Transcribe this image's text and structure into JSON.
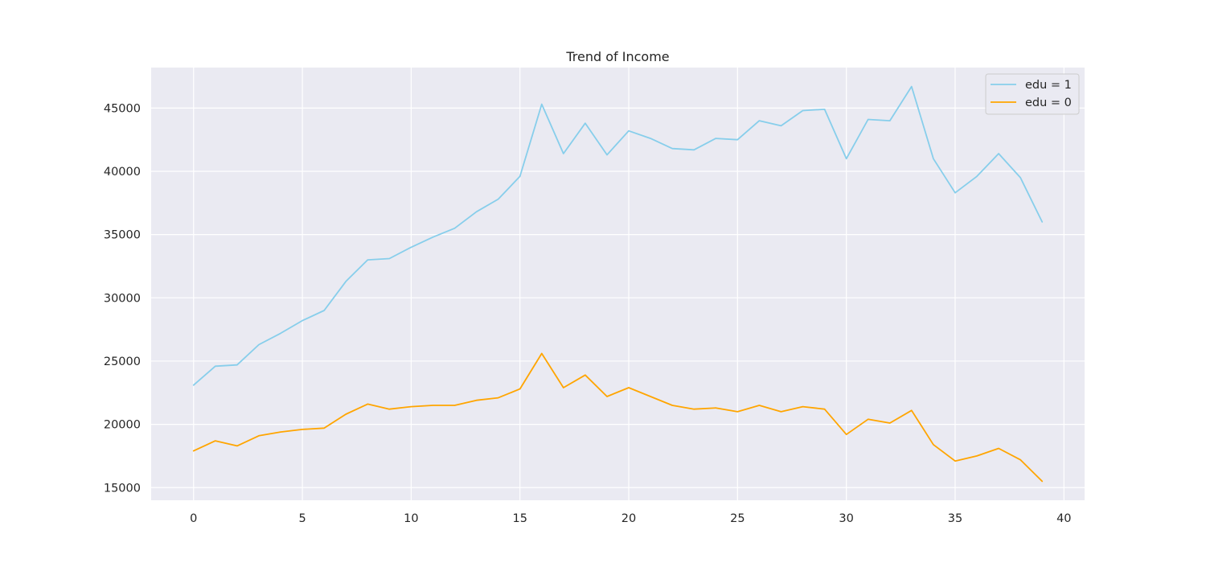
{
  "chart_data": {
    "type": "line",
    "title": "Trend of Income",
    "xlabel": "",
    "ylabel": "",
    "xlim": [
      -1.95,
      40.95
    ],
    "ylim": [
      14000,
      48200
    ],
    "xticks": [
      0,
      5,
      10,
      15,
      20,
      25,
      30,
      35,
      40
    ],
    "yticks": [
      15000,
      20000,
      25000,
      30000,
      35000,
      40000,
      45000
    ],
    "grid": true,
    "legend_position": "top-right",
    "x": [
      0,
      1,
      2,
      3,
      4,
      5,
      6,
      7,
      8,
      9,
      10,
      11,
      12,
      13,
      14,
      15,
      16,
      17,
      18,
      19,
      20,
      21,
      22,
      23,
      24,
      25,
      26,
      27,
      28,
      29,
      30,
      31,
      32,
      33,
      34,
      35,
      36,
      37,
      38,
      39
    ],
    "series": [
      {
        "name": "edu = 1",
        "color": "#87ceeb",
        "values": [
          23100,
          24600,
          24700,
          26300,
          27200,
          28200,
          29000,
          31300,
          33000,
          33100,
          34000,
          34800,
          35500,
          36800,
          37800,
          39600,
          45300,
          41400,
          43800,
          41300,
          43200,
          42600,
          41800,
          41700,
          42600,
          42500,
          44000,
          43600,
          44800,
          44900,
          41000,
          44100,
          44000,
          46700,
          41000,
          38300,
          39600,
          41400,
          39500,
          36000
        ]
      },
      {
        "name": "edu = 0",
        "color": "#ffa500",
        "values": [
          17900,
          18700,
          18300,
          19100,
          19400,
          19600,
          19700,
          20800,
          21600,
          21200,
          21400,
          21500,
          21500,
          21900,
          22100,
          22800,
          25600,
          22900,
          23900,
          22200,
          22900,
          22200,
          21500,
          21200,
          21300,
          21000,
          21500,
          21000,
          21400,
          21200,
          19200,
          20400,
          20100,
          21100,
          18400,
          17100,
          17500,
          18100,
          17200,
          15500
        ]
      }
    ]
  }
}
